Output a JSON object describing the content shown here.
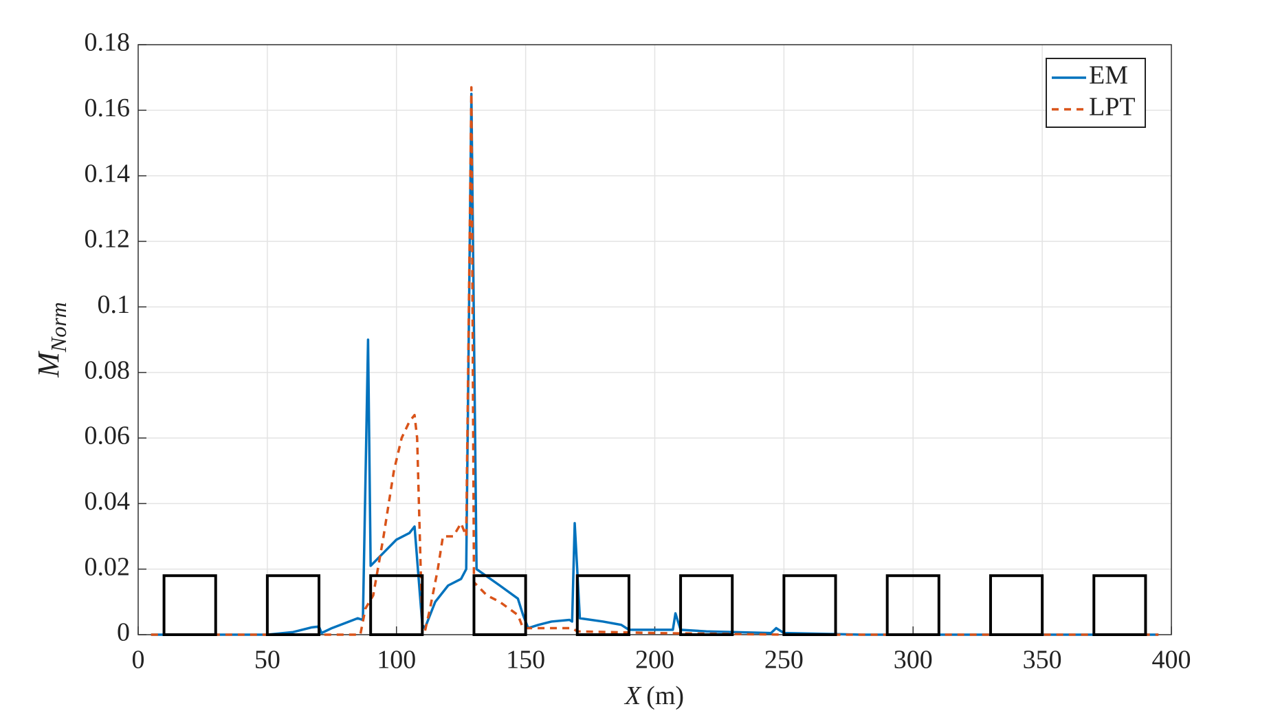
{
  "chart_data": {
    "type": "line",
    "xlabel_var": "X",
    "xlabel_unit": "(m)",
    "ylabel": "M",
    "ylabel_sub": "Norm",
    "xlim": [
      0,
      400
    ],
    "xticks": [
      0,
      50,
      100,
      150,
      200,
      250,
      300,
      350,
      400
    ],
    "ylim": [
      0,
      0.18
    ],
    "yticks": [
      0,
      0.02,
      0.04,
      0.06,
      0.08,
      0.1,
      0.12,
      0.14,
      0.16,
      0.18
    ],
    "grid": true,
    "legend": "northeast",
    "series": [
      {
        "name": "EM",
        "color": "#0072bd",
        "linestyle": "solid",
        "x": [
          5,
          50,
          60,
          67,
          70,
          71,
          75,
          85,
          87,
          89,
          90,
          95,
          100,
          105,
          107,
          110,
          111,
          115,
          120,
          125,
          127,
          129,
          131,
          140,
          147,
          149,
          151,
          155,
          160,
          167,
          168,
          169,
          171,
          180,
          187,
          190,
          200,
          207,
          208,
          210,
          220,
          245,
          247,
          250,
          280,
          395
        ],
        "values": [
          0,
          0,
          0.0008,
          0.0022,
          0.0025,
          0.0005,
          0.002,
          0.005,
          0.0045,
          0.09,
          0.021,
          0.025,
          0.029,
          0.031,
          0.033,
          0.003,
          0.002,
          0.01,
          0.015,
          0.017,
          0.02,
          0.165,
          0.02,
          0.015,
          0.011,
          0.006,
          0.002,
          0.003,
          0.004,
          0.0045,
          0.004,
          0.034,
          0.005,
          0.004,
          0.003,
          0.0015,
          0.0015,
          0.0015,
          0.0065,
          0.0015,
          0.001,
          0.0005,
          0.002,
          0.0005,
          0,
          0
        ]
      },
      {
        "name": "LPT",
        "color": "#d95319",
        "linestyle": "dashed",
        "x": [
          5,
          86,
          88,
          91,
          95,
          99,
          102,
          105,
          107,
          108,
          110,
          111,
          113,
          116,
          118,
          122,
          125,
          127,
          129,
          130,
          135,
          140,
          147,
          149,
          160,
          168,
          170,
          200,
          250,
          395
        ],
        "values": [
          0,
          0,
          0.008,
          0.012,
          0.03,
          0.05,
          0.06,
          0.065,
          0.067,
          0.06,
          0.002,
          0.001,
          0.008,
          0.02,
          0.03,
          0.03,
          0.034,
          0.03,
          0.167,
          0.016,
          0.012,
          0.01,
          0.006,
          0.002,
          0.002,
          0.002,
          0.001,
          0.0005,
          0,
          0
        ]
      }
    ],
    "obstacles": [
      {
        "x0": 10,
        "x1": 30,
        "height": 0.018
      },
      {
        "x0": 50,
        "x1": 70,
        "height": 0.018
      },
      {
        "x0": 90,
        "x1": 110,
        "height": 0.018
      },
      {
        "x0": 130,
        "x1": 150,
        "height": 0.018
      },
      {
        "x0": 170,
        "x1": 190,
        "height": 0.018
      },
      {
        "x0": 210,
        "x1": 230,
        "height": 0.018
      },
      {
        "x0": 250,
        "x1": 270,
        "height": 0.018
      },
      {
        "x0": 290,
        "x1": 310,
        "height": 0.018
      },
      {
        "x0": 330,
        "x1": 350,
        "height": 0.018
      },
      {
        "x0": 370,
        "x1": 390,
        "height": 0.018
      }
    ]
  }
}
